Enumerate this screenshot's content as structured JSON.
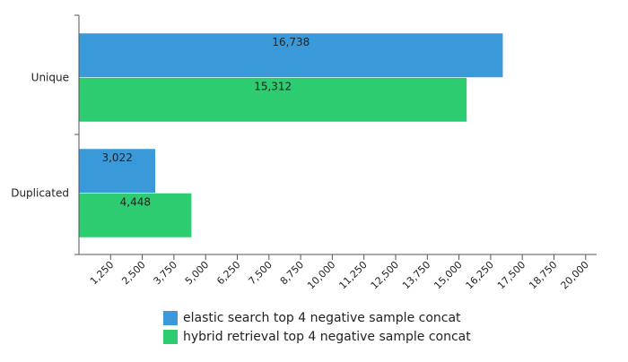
{
  "chart_data": {
    "type": "bar",
    "orientation": "horizontal",
    "categories": [
      "Unique",
      "Duplicated"
    ],
    "series": [
      {
        "name": "elastic search top 4 negative sample concat",
        "color": "#3a9ad9",
        "values": [
          16738,
          3022
        ],
        "labels": [
          "16,738",
          "3,022"
        ]
      },
      {
        "name": "hybrid retrieval top 4 negative sample concat",
        "color": "#2ecc71",
        "values": [
          15312,
          4448
        ],
        "labels": [
          "15,312",
          "4,448"
        ]
      }
    ],
    "xlim": [
      0,
      20000
    ],
    "xticks": [
      1250,
      2500,
      3750,
      5000,
      6250,
      7500,
      8750,
      10000,
      11250,
      12500,
      13750,
      15000,
      16250,
      17500,
      18750,
      20000
    ],
    "xtick_labels": [
      "1,250",
      "2,500",
      "3,750",
      "5,000",
      "6,250",
      "7,500",
      "8,750",
      "10,000",
      "11,250",
      "12,500",
      "13,750",
      "15,000",
      "16,250",
      "17,500",
      "18,750",
      "20,000"
    ],
    "grid": false,
    "legend_position": "bottom-center"
  }
}
